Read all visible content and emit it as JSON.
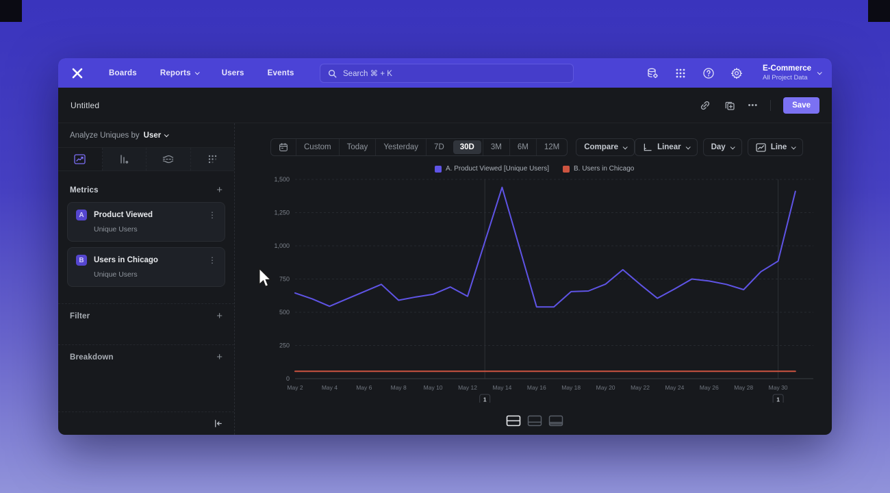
{
  "navbar": {
    "items": [
      "Boards",
      "Reports",
      "Users",
      "Events"
    ],
    "search_placeholder": "Search  ⌘ + K",
    "project": {
      "name": "E-Commerce",
      "scope": "All Project Data"
    }
  },
  "titlebar": {
    "title": "Untitled",
    "more_label": "•••",
    "save_label": "Save"
  },
  "sidebar": {
    "analyze": {
      "prefix": "Analyze Uniques by",
      "value": "User"
    },
    "metrics": {
      "header": "Metrics",
      "add": "+",
      "items": [
        {
          "letter": "A",
          "name": "Product Viewed",
          "sub": "Unique Users"
        },
        {
          "letter": "B",
          "name": "Users in Chicago",
          "sub": "Unique Users"
        }
      ]
    },
    "filter": {
      "label": "Filter",
      "add": "+"
    },
    "breakdown": {
      "label": "Breakdown",
      "add": "+"
    }
  },
  "toolbar": {
    "ranges": [
      "Custom",
      "Today",
      "Yesterday",
      "7D",
      "30D",
      "3M",
      "6M",
      "12M"
    ],
    "selected_range": "30D",
    "compare_label": "Compare",
    "scale_label": "Linear",
    "granularity_label": "Day",
    "chart_type_label": "Line"
  },
  "chart_data": {
    "type": "line",
    "title": "",
    "x": [
      "May 2",
      "May 3",
      "May 4",
      "May 5",
      "May 6",
      "May 7",
      "May 8",
      "May 9",
      "May 10",
      "May 11",
      "May 12",
      "May 13",
      "May 14",
      "May 15",
      "May 16",
      "May 17",
      "May 18",
      "May 19",
      "May 20",
      "May 21",
      "May 22",
      "May 23",
      "May 24",
      "May 25",
      "May 26",
      "May 27",
      "May 28",
      "May 29",
      "May 30",
      "May 31"
    ],
    "x_tick_every": 2,
    "series": [
      {
        "name": "A. Product Viewed [Unique Users]",
        "color": "#5f54e6",
        "values": [
          645,
          600,
          545,
          600,
          655,
          710,
          590,
          615,
          635,
          690,
          620,
          1030,
          1440,
          990,
          540,
          540,
          655,
          660,
          712,
          820,
          710,
          605,
          675,
          750,
          735,
          710,
          670,
          805,
          885,
          1410
        ]
      },
      {
        "name": "B. Users in Chicago",
        "color": "#cd5440",
        "values": [
          55,
          55,
          55,
          55,
          55,
          55,
          55,
          55,
          55,
          55,
          55,
          55,
          55,
          55,
          55,
          55,
          55,
          55,
          55,
          55,
          55,
          55,
          55,
          55,
          55,
          55,
          55,
          55,
          55,
          55
        ]
      }
    ],
    "ylim": [
      0,
      1500
    ],
    "yticks": [
      0,
      250,
      500,
      750,
      1000,
      1250,
      1500
    ],
    "ytick_labels": [
      "0",
      "250",
      "500",
      "750",
      "1,000",
      "1,250",
      "1,500"
    ],
    "grid": "horizontal-dashed",
    "legend_position": "top",
    "annotations": [
      {
        "label": "1",
        "x": "May 13"
      },
      {
        "label": "1",
        "x": "May 30"
      }
    ]
  },
  "footer": {
    "view_toggles": [
      "split-view",
      "chart-view",
      "table-view"
    ]
  }
}
